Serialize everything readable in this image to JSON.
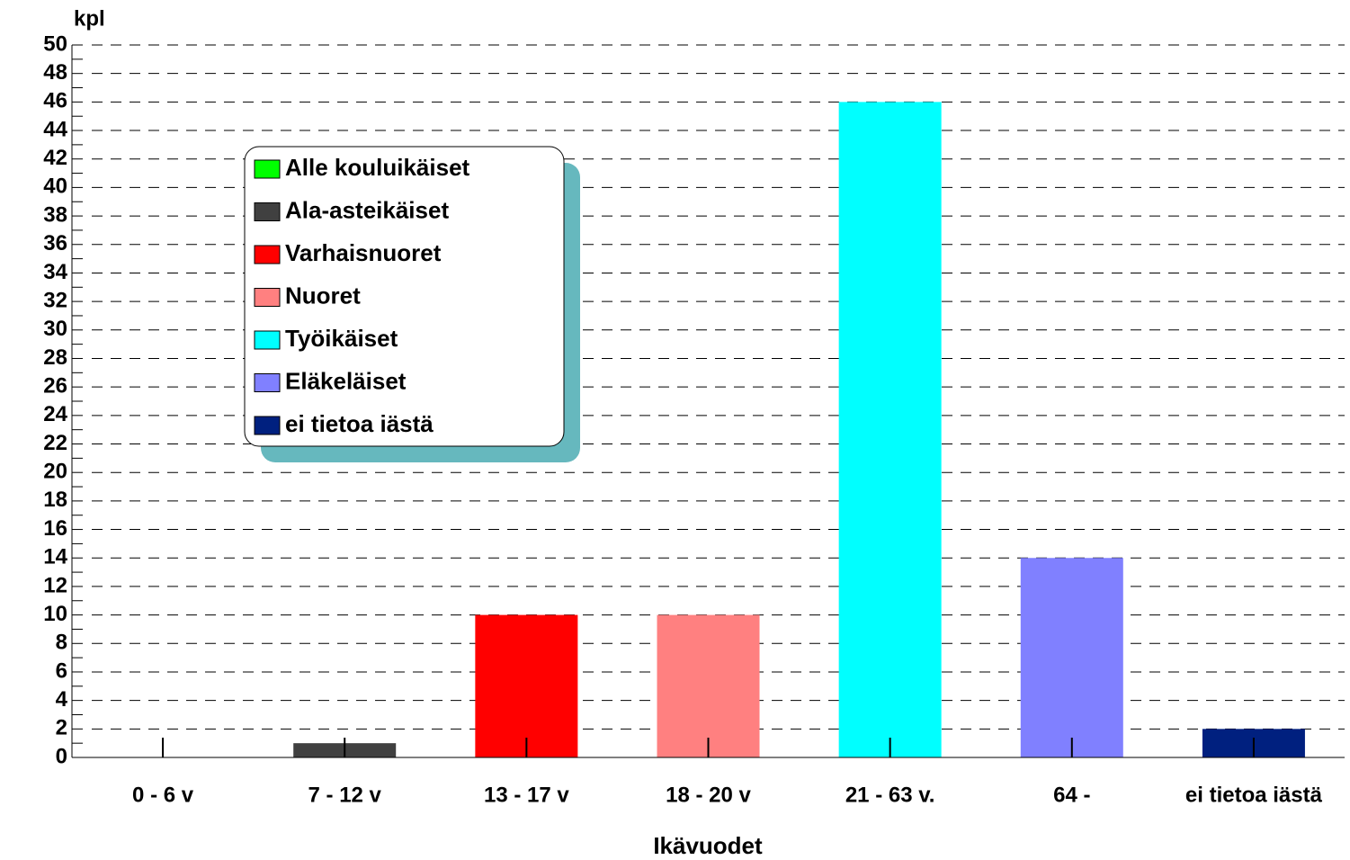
{
  "chart_data": {
    "type": "bar",
    "y_axis_label": "kpl",
    "x_axis_label": "Ikävuodet",
    "categories": [
      "0 - 6 v",
      "7 - 12 v",
      "13 - 17 v",
      "18 - 20 v",
      "21 - 63 v.",
      "64 -",
      "ei tietoa iästä"
    ],
    "values": [
      0,
      1,
      10,
      10,
      46,
      14,
      2
    ],
    "colors": [
      "#00ff00",
      "#404040",
      "#ff0000",
      "#ff8080",
      "#00ffff",
      "#8080ff",
      "#00207f"
    ],
    "legend": [
      "Alle kouluikäiset",
      "Ala-asteikäiset",
      "Varhaisnuoret",
      "Nuoret",
      "Työikäiset",
      "Eläkeläiset",
      "ei tietoa iästä"
    ],
    "ylim": [
      0,
      50
    ],
    "yticks": [
      0,
      2,
      4,
      6,
      8,
      10,
      12,
      14,
      16,
      18,
      20,
      22,
      24,
      26,
      28,
      30,
      32,
      34,
      36,
      38,
      40,
      42,
      44,
      46,
      48,
      50
    ],
    "minor_yticks": [
      1,
      3,
      5,
      7,
      9,
      11,
      13,
      15,
      17,
      19,
      21,
      23,
      25,
      27,
      29,
      31,
      33,
      35,
      37,
      39,
      41,
      43,
      45,
      47,
      49
    ],
    "grid": true
  }
}
